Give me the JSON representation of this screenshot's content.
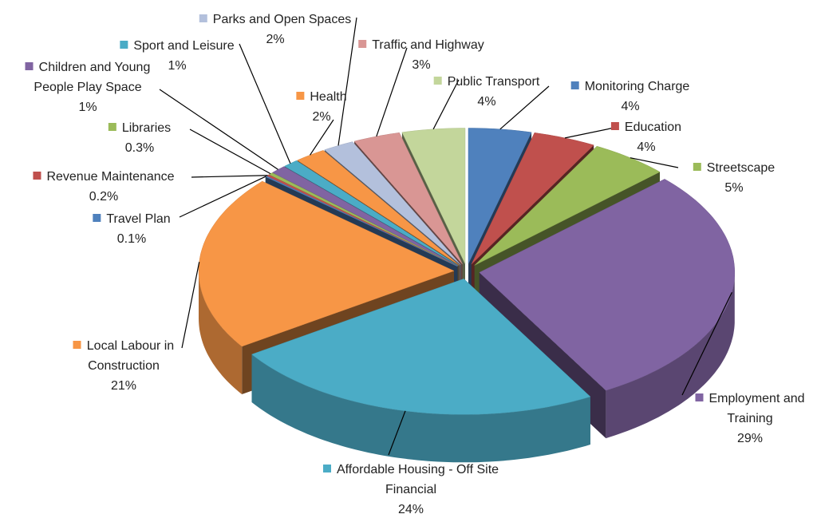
{
  "chart_data": {
    "type": "pie3d",
    "categories": [
      "Monitoring Charge",
      "Education",
      "Streetscape",
      "Employment and Training",
      "Affordable Housing - Off Site Financial",
      "Local Labour in Construction",
      "Travel Plan",
      "Revenue Maintenance",
      "Libraries",
      "Children and Young People Play Space",
      "Sport and Leisure",
      "Health",
      "Parks and Open Spaces",
      "Traffic and Highway",
      "Public Transport"
    ],
    "values": [
      4,
      4,
      5,
      29,
      24,
      21,
      0.1,
      0.2,
      0.3,
      1,
      1,
      2,
      2,
      3,
      4
    ],
    "value_labels": [
      "4%",
      "4%",
      "5%",
      "29%",
      "24%",
      "21%",
      "0.1%",
      "0.2%",
      "0.3%",
      "1%",
      "1%",
      "2%",
      "2%",
      "3%",
      "4%"
    ],
    "colors": [
      "#4f81bd",
      "#c0504d",
      "#9bbb59",
      "#8064a2",
      "#4bacc6",
      "#f79646",
      "#4f81bd",
      "#c0504d",
      "#9bbb59",
      "#8064a2",
      "#4bacc6",
      "#f79646",
      "#b3c0dc",
      "#d99694",
      "#c3d69b"
    ]
  }
}
